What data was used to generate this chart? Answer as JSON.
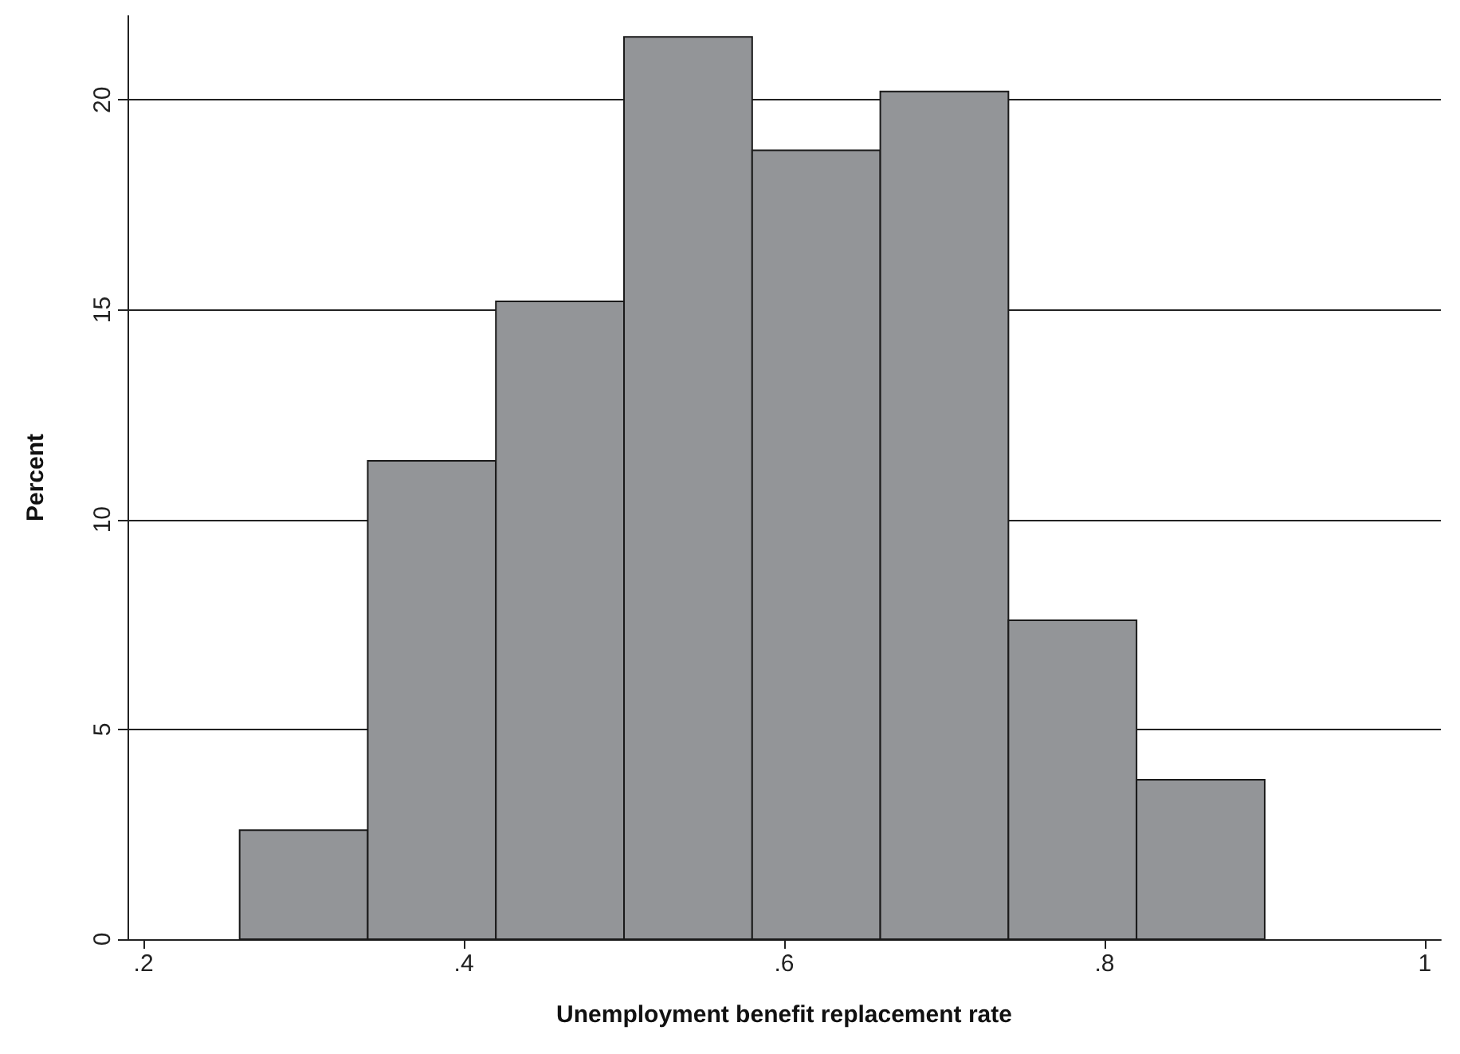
{
  "chart_data": {
    "type": "histogram",
    "xlabel": "Unemployment benefit replacement rate",
    "ylabel": "Percent",
    "bins": [
      0.26,
      0.34,
      0.42,
      0.5,
      0.58,
      0.66,
      0.74,
      0.82,
      0.9
    ],
    "values": [
      2.6,
      11.4,
      15.2,
      21.5,
      18.8,
      20.2,
      7.6,
      3.8
    ],
    "color": "#939598",
    "xlim": [
      0.19,
      1.01
    ],
    "xticks": [
      {
        "value": 0.2,
        "label": ".2"
      },
      {
        "value": 0.4,
        "label": ".4"
      },
      {
        "value": 0.6,
        "label": ".6"
      },
      {
        "value": 0.8,
        "label": ".8"
      },
      1
    ],
    "ylim": [
      0,
      22
    ],
    "yticks": [
      0,
      5,
      10,
      15,
      20
    ],
    "grid": "y"
  }
}
